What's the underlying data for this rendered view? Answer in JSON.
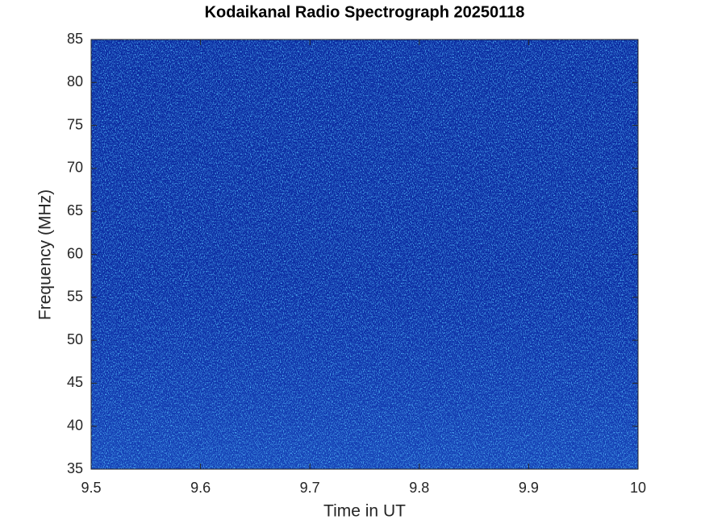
{
  "chart_data": {
    "type": "spectrogram",
    "title": "Kodaikanal Radio Spectrograph  20250118",
    "x_label": "Time in UT",
    "y_label": "Frequency (MHz)",
    "xlim": [
      9.5,
      10
    ],
    "xticks": [
      9.5,
      9.6,
      9.7,
      9.8,
      9.9,
      10
    ],
    "ylim": [
      35,
      85
    ],
    "yticks": [
      35,
      40,
      45,
      50,
      55,
      60,
      65,
      70,
      75,
      80,
      85
    ]
  }
}
